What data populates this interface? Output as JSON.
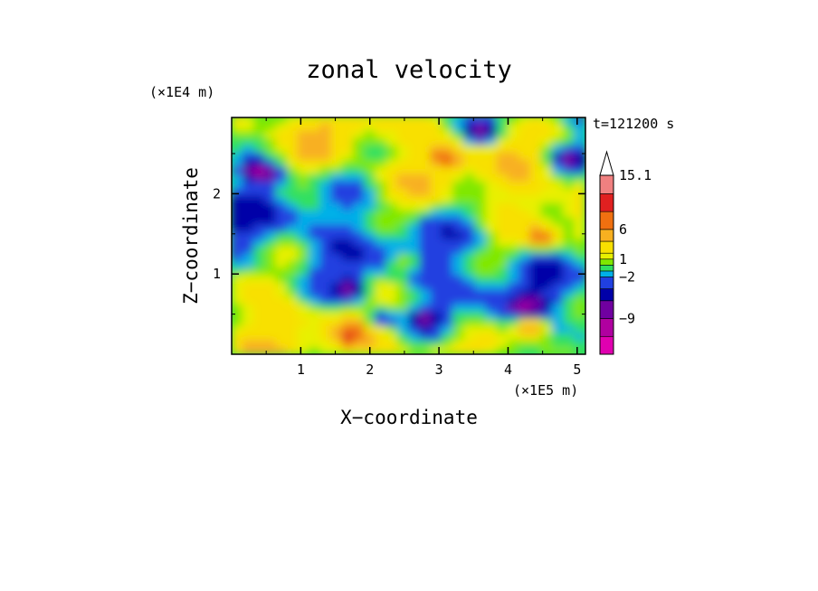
{
  "chart_data": {
    "type": "heatmap",
    "title": "zonal velocity",
    "xlabel": "X−coordinate",
    "ylabel": "Z−coordinate",
    "x_scale_label": "(×1E5 m)",
    "y_scale_label": "(×1E4 m)",
    "time_label": "t=121200 s",
    "xlim": [
      0,
      5.12
    ],
    "ylim": [
      0,
      2.95
    ],
    "x_ticks": [
      {
        "value": 1,
        "label": "1"
      },
      {
        "value": 2,
        "label": "2"
      },
      {
        "value": 3,
        "label": "3"
      },
      {
        "value": 4,
        "label": "4"
      },
      {
        "value": 5,
        "label": "5"
      }
    ],
    "y_ticks": [
      {
        "value": 1,
        "label": "1"
      },
      {
        "value": 2,
        "label": "2"
      }
    ],
    "colorbar": {
      "levels": [
        -15,
        -12,
        -9,
        -6,
        -4,
        -2,
        -1,
        0,
        1,
        2,
        4,
        6,
        9,
        12,
        15.1
      ],
      "colors": [
        "#e000b0",
        "#b000a0",
        "#7000a0",
        "#0000a8",
        "#2040e0",
        "#00b0e8",
        "#30e060",
        "#80e800",
        "#e8f000",
        "#f8e000",
        "#f8b020",
        "#f07010",
        "#e02020",
        "#f08080",
        "#f8c8c8"
      ],
      "labels": [
        {
          "value": 15.1,
          "label": "15.1"
        },
        {
          "value": 6,
          "label": "6"
        },
        {
          "value": 1,
          "label": "1"
        },
        {
          "value": -2,
          "label": "−2"
        },
        {
          "value": -9,
          "label": "−9"
        }
      ],
      "extend_top": true
    },
    "features": [
      {
        "x": 0.3,
        "z": 2.3,
        "value": -6
      },
      {
        "x": 0.55,
        "z": 2.25,
        "value": -6
      },
      {
        "x": 3.6,
        "z": 2.75,
        "value": -6
      },
      {
        "x": 4.85,
        "z": 2.45,
        "value": -6
      },
      {
        "x": 3.1,
        "z": 2.45,
        "value": 6
      },
      {
        "x": 4.5,
        "z": 1.45,
        "value": 6
      },
      {
        "x": 1.75,
        "z": 0.8,
        "value": -6
      },
      {
        "x": 2.15,
        "z": 0.45,
        "value": -6
      },
      {
        "x": 2.8,
        "z": 0.45,
        "value": -6
      },
      {
        "x": 4.3,
        "z": 0.6,
        "value": -6
      },
      {
        "x": 1.7,
        "z": 0.25,
        "value": 6
      },
      {
        "x": 2.5,
        "z": 1.15,
        "value": 4
      },
      {
        "x": 4.35,
        "z": 0.35,
        "value": 9
      }
    ]
  }
}
